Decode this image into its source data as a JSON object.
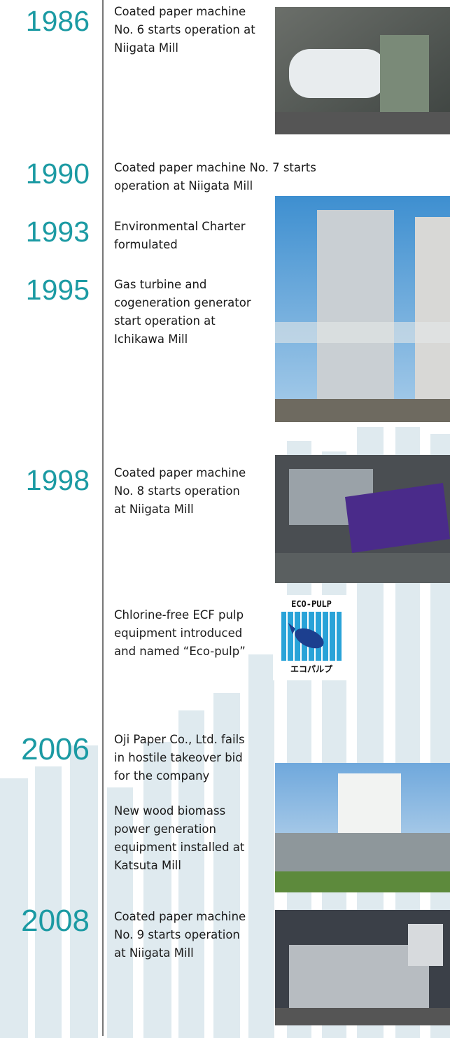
{
  "timeline": [
    {
      "year": "1986",
      "items": [
        [
          "Coated paper machine",
          "No. 6 starts operation at",
          "Niigata Mill"
        ]
      ]
    },
    {
      "year": "1990",
      "items": [
        [
          "Coated paper machine No. 7 starts",
          "operation at Niigata Mill"
        ]
      ]
    },
    {
      "year": "1993",
      "items": [
        [
          "Environmental Charter",
          "formulated"
        ]
      ]
    },
    {
      "year": "1995",
      "items": [
        [
          "Gas turbine and",
          "cogeneration generator",
          "start operation at",
          "Ichikawa Mill"
        ]
      ]
    },
    {
      "year": "1998",
      "items": [
        [
          "Coated paper machine",
          "No. 8 starts operation",
          "at Niigata Mill"
        ],
        [
          "Chlorine-free ECF pulp",
          "equipment introduced",
          "and named “Eco-pulp”"
        ]
      ]
    },
    {
      "year": "2006",
      "items": [
        [
          "Oji Paper Co., Ltd. fails",
          "in hostile takeover bid",
          "for the company"
        ],
        [
          "New wood biomass",
          "power generation",
          "equipment installed at",
          "Katsuta Mill"
        ]
      ]
    },
    {
      "year": "2008",
      "items": [
        [
          "Coated paper machine",
          "No. 9 starts operation",
          "at Niigata Mill"
        ]
      ]
    }
  ],
  "logo": {
    "top": "ECO-PULP",
    "bottom": "エコパルプ"
  }
}
